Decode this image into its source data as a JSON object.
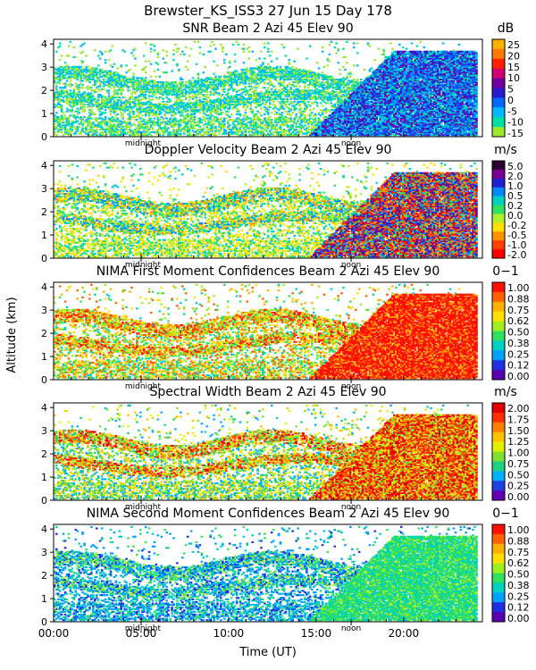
{
  "header": {
    "title": "Brewster_KS_ISS3  27 Jun 15 Day 178"
  },
  "axes": {
    "ylabel": "Altitude (km)",
    "xlabel": "Time (UT)",
    "x_ticks": [
      "00:00",
      "05:00",
      "10:00",
      "15:00",
      "20:00"
    ],
    "x_tick_values": [
      0,
      5,
      10,
      15,
      20
    ],
    "xlim": [
      0,
      24.5
    ],
    "y_ticks": [
      "0",
      "1",
      "2",
      "3",
      "4"
    ],
    "y_tick_values": [
      0,
      1,
      2,
      3,
      4
    ],
    "ylim": [
      0,
      4.2
    ],
    "midnight_label": "midnight",
    "midnight_time": 5.0,
    "noon_label": "noon",
    "noon_time": 17.0
  },
  "chart_data": [
    {
      "type": "heatmap",
      "id": "snr",
      "title": "SNR Beam 2 Azi  45 Elev 90",
      "units": "dB",
      "colorbar_labels": [
        "25",
        "20",
        "15",
        "10",
        "5",
        "0",
        "-5",
        "-10",
        "-15"
      ],
      "colorbar_colors": [
        "#ffb000",
        "#ff7a00",
        "#ff2000",
        "#d00070",
        "#7000a0",
        "#2a1acc",
        "#0068ff",
        "#00b8ff",
        "#00e0a0",
        "#9ce830"
      ],
      "description_values": {
        "xlim": [
          0,
          24.5
        ],
        "ylim": [
          0,
          4.2
        ]
      }
    },
    {
      "type": "heatmap",
      "id": "doppler",
      "title": "Doppler Velocity Beam 2 Azi  45 Elev 90",
      "units": "m/s",
      "colorbar_labels": [
        "5.0",
        "2.0",
        "1.0",
        "0.5",
        "0.2",
        "0.0",
        "-0.2",
        "-0.5",
        "-1.0",
        "-2.0"
      ],
      "colorbar_colors": [
        "#2a0030",
        "#7a0090",
        "#2020d0",
        "#0088ff",
        "#00d0c0",
        "#30e060",
        "#b0ee30",
        "#ffe000",
        "#ff9000",
        "#ff4000",
        "#ff0000"
      ]
    },
    {
      "type": "heatmap",
      "id": "nima1",
      "title": "NIMA First Moment Confidences Beam 2 Azi  45 Elev 90",
      "units": "0−1",
      "colorbar_labels": [
        "1.00",
        "0.88",
        "0.75",
        "0.62",
        "0.50",
        "0.38",
        "0.25",
        "0.12",
        "0.00"
      ],
      "colorbar_colors": [
        "#ff1000",
        "#ff6000",
        "#ffb000",
        "#ffe000",
        "#a0ee20",
        "#30e060",
        "#00d0c0",
        "#00a0ff",
        "#2030e0",
        "#5a00b0"
      ]
    },
    {
      "type": "heatmap",
      "id": "width",
      "title": "Spectral Width Beam 2 Azi  45 Elev 90",
      "units": "m/s",
      "colorbar_labels": [
        "2.00",
        "1.75",
        "1.50",
        "1.25",
        "1.00",
        "0.75",
        "0.50",
        "0.25",
        "0.00"
      ],
      "colorbar_colors": [
        "#e00000",
        "#ff3000",
        "#ff8000",
        "#ffc000",
        "#e0f000",
        "#80e030",
        "#20d080",
        "#00b0ff",
        "#2040e0",
        "#6000b0"
      ]
    },
    {
      "type": "heatmap",
      "id": "nima2",
      "title": "NIMA Second Moment Confidences Beam 2 Azi  45 Elev 90",
      "units": "0−1",
      "colorbar_labels": [
        "1.00",
        "0.88",
        "0.75",
        "0.62",
        "0.50",
        "0.38",
        "0.25",
        "0.12",
        "0.00"
      ],
      "colorbar_colors": [
        "#ff1000",
        "#ff6000",
        "#ffb000",
        "#ffe000",
        "#a0ee20",
        "#30e060",
        "#00d0c0",
        "#00a0ff",
        "#2030e0",
        "#5a00b0"
      ]
    }
  ]
}
